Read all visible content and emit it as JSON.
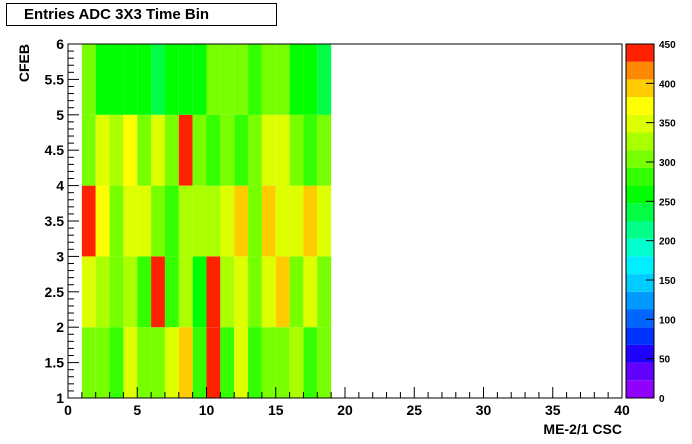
{
  "chart_data": {
    "type": "heatmap",
    "title": "Entries ADC 3X3 Time Bin",
    "xlabel": "ME-2/1 CSC",
    "ylabel": "CFEB",
    "xlim": [
      0,
      40
    ],
    "xticks": [
      0,
      5,
      10,
      15,
      20,
      25,
      30,
      35,
      40
    ],
    "ylim": [
      1,
      6
    ],
    "yticks": [
      1,
      1.5,
      2,
      2.5,
      3,
      3.5,
      4,
      4.5,
      5,
      5.5,
      6
    ],
    "zlim": [
      0,
      450
    ],
    "zticks": [
      0,
      50,
      100,
      150,
      200,
      250,
      300,
      350,
      400,
      450
    ],
    "xbins": [
      1,
      2,
      3,
      4,
      5,
      6,
      7,
      8,
      9,
      10,
      11,
      12,
      13,
      14,
      15,
      16,
      17,
      18,
      19
    ],
    "ybins": [
      1,
      2,
      3,
      4,
      5,
      6
    ],
    "values": [
      [
        300,
        295,
        280,
        350,
        310,
        310,
        355,
        385,
        270,
        440,
        270,
        350,
        280,
        300,
        310,
        320,
        275,
        300
      ],
      [
        350,
        325,
        300,
        325,
        285,
        440,
        275,
        330,
        265,
        440,
        325,
        355,
        300,
        350,
        385,
        300,
        350,
        305
      ],
      [
        430,
        360,
        310,
        355,
        355,
        300,
        285,
        330,
        330,
        330,
        350,
        390,
        300,
        390,
        350,
        350,
        390,
        350
      ],
      [
        300,
        350,
        330,
        380,
        300,
        350,
        300,
        430,
        300,
        270,
        300,
        275,
        300,
        350,
        350,
        300,
        275,
        300
      ],
      [
        300,
        260,
        260,
        265,
        260,
        225,
        260,
        255,
        265,
        300,
        300,
        300,
        270,
        295,
        295,
        265,
        265,
        235
      ]
    ],
    "palette": [
      "#9000ff",
      "#6000ff",
      "#2000ff",
      "#0033ff",
      "#0066ff",
      "#0099ff",
      "#00ccff",
      "#00eeff",
      "#00ffcc",
      "#00ff88",
      "#00ff44",
      "#00ff00",
      "#33ff00",
      "#77ff00",
      "#aaff00",
      "#ddff00",
      "#ffff00",
      "#ffcc00",
      "#ff8800",
      "#ff2200"
    ]
  }
}
